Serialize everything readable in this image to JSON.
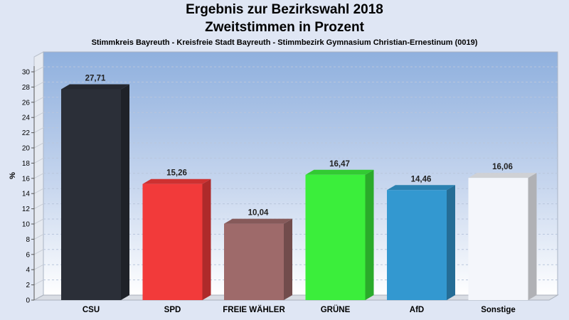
{
  "chart_data": {
    "type": "bar",
    "title": "Ergebnis zur Bezirkswahl 2018",
    "subtitle": "Zweitstimmen in Prozent",
    "caption": "Stimmkreis Bayreuth - Kreisfreie Stadt Bayreuth - Stimmbezirk Gymnasium Christian-Ernestinum (0019)",
    "ylabel": "%",
    "xlabel": "",
    "ylim": [
      0,
      30
    ],
    "yticks": [
      0,
      2,
      4,
      6,
      8,
      10,
      12,
      14,
      16,
      18,
      20,
      22,
      24,
      26,
      28,
      30
    ],
    "categories": [
      "CSU",
      "SPD",
      "FREIE WÄHLER",
      "GRÜNE",
      "AfD",
      "Sonstige"
    ],
    "values": [
      27.71,
      15.26,
      10.04,
      16.47,
      14.46,
      16.06
    ],
    "value_labels": [
      "27,71",
      "15,26",
      "10,04",
      "16,47",
      "14,46",
      "16,06"
    ],
    "colors": [
      "#2b2f38",
      "#f23a3a",
      "#9e6a6a",
      "#3bee3b",
      "#3398d0",
      "#f4f6fb"
    ],
    "grid": true,
    "legend": "none"
  }
}
